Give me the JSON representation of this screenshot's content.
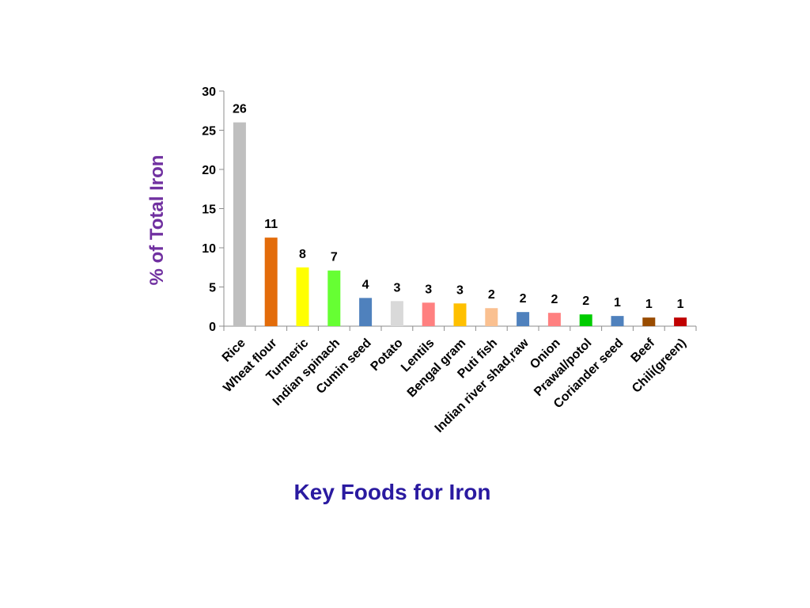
{
  "chart_data": {
    "type": "bar",
    "title": "",
    "ylabel": "% of Total Iron",
    "xlabel": "Key Foods for Iron",
    "ylim": [
      0,
      30
    ],
    "yticks": [
      0,
      5,
      10,
      15,
      20,
      25,
      30
    ],
    "grid": false,
    "legend": "none",
    "categories": [
      "Rice",
      "Wheat flour",
      "Turmeric",
      "Indian spinach",
      "Cumin seed",
      "Potato",
      "Lentils",
      "Bengal gram",
      "Puti fish",
      "Indian river shad,raw",
      "Onion",
      "Prawal/potol",
      "Coriander seed",
      "Beef",
      "Chili(green)"
    ],
    "values": [
      26,
      11.3,
      7.5,
      7.1,
      3.6,
      3.2,
      3.0,
      2.9,
      2.3,
      1.8,
      1.7,
      1.5,
      1.3,
      1.1,
      1.1
    ],
    "data_labels": [
      "26",
      "11",
      "8",
      "7",
      "4",
      "3",
      "3",
      "3",
      "2",
      "2",
      "2",
      "2",
      "1",
      "1",
      "1"
    ],
    "colors": [
      "#bfbfbf",
      "#e36c0a",
      "#ffff00",
      "#66ff33",
      "#4f81bd",
      "#d9d9d9",
      "#ff8080",
      "#ffc000",
      "#fac090",
      "#4f81bd",
      "#ff8080",
      "#00cc00",
      "#4f81bd",
      "#994c00",
      "#c00000"
    ]
  }
}
